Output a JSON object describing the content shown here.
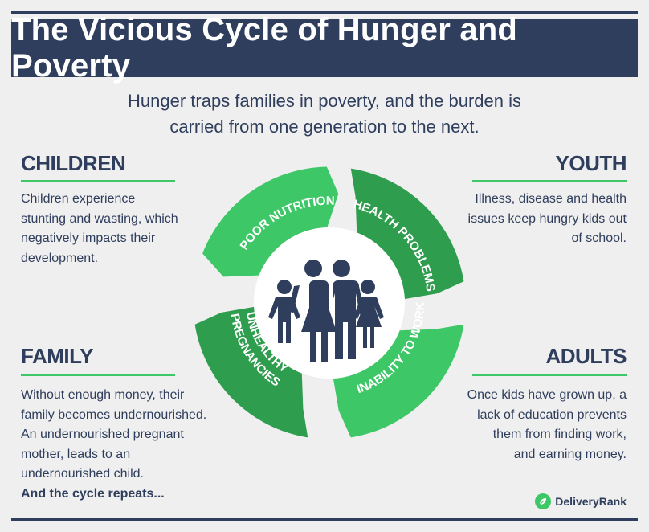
{
  "title": "The Vicious Cycle of Hunger and Poverty",
  "subtitle_line1": "Hunger traps families in poverty, and the burden is",
  "subtitle_line2": "carried from one generation to the next.",
  "sections": {
    "children": {
      "heading": "CHILDREN",
      "lines": [
        "Children experience",
        "stunting and wasting, which",
        "negatively impacts their",
        "development."
      ]
    },
    "youth": {
      "heading": "YOUTH",
      "lines": [
        "Illness, disease and health",
        "issues keep hungry kids out",
        "of school."
      ]
    },
    "family": {
      "heading": "FAMILY",
      "lines": [
        "Without enough money, their",
        "family becomes undernourished.",
        "An undernourished pregnant",
        "mother, leads to an",
        "undernourished child."
      ],
      "emphasis": "And the cycle repeats..."
    },
    "adults": {
      "heading": "ADULTS",
      "lines": [
        "Once kids have grown up, a",
        "lack of education prevents",
        "them from finding work,",
        "and earning money."
      ]
    }
  },
  "cycle": {
    "segments": [
      {
        "label": "POOR NUTRITION"
      },
      {
        "label": "HEALTH PROBLEMS"
      },
      {
        "label": "INABILITY TO WORK"
      },
      {
        "label_line1": "UNHEALTHY",
        "label_line2": "PREGNANCIES"
      }
    ],
    "center_icon": "family-icon",
    "colors": {
      "light_green": "#3ec766",
      "dark_green": "#2f9d4e",
      "navy": "#2f3e5c"
    }
  },
  "logo": {
    "text": "DeliveryRank",
    "icon": "leaf-icon"
  }
}
